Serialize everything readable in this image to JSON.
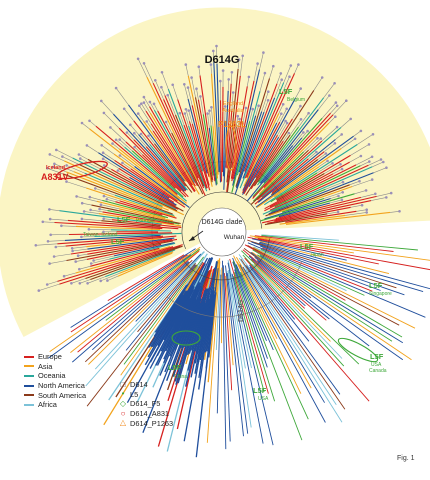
{
  "clade_title": "D614G",
  "center_labels": {
    "clade": "D614G clade",
    "root": "Wuhan",
    "inner": "D614G"
  },
  "annotations": [
    {
      "id": "p1263l",
      "places": "England\nAustralia",
      "mutation": "P1263L",
      "color": "#f08a1c"
    },
    {
      "id": "a831v",
      "places": "Iceland",
      "mutation": "A831V",
      "color": "#d6201f"
    },
    {
      "id": "l5f-belgium",
      "mutation": "L5F",
      "place": "Belgium",
      "color": "#3ea83a"
    },
    {
      "id": "l5f-portugal",
      "mutation": "L5F",
      "place": "Portugal",
      "color": "#3ea83a"
    },
    {
      "id": "l5f-taiwan",
      "mutation": "L5F",
      "place": "Taiwan, Iceland",
      "color": "#3ea83a"
    },
    {
      "id": "l5f-japan",
      "mutation": "L5F",
      "place": "Japan",
      "color": "#3ea83a"
    },
    {
      "id": "l5f-singapore",
      "mutation": "L5F",
      "place": "Singapore",
      "color": "#3ea83a"
    },
    {
      "id": "l5f-usa-canada",
      "mutation": "L5F",
      "place": "USA\nCanada",
      "color": "#3ea83a"
    },
    {
      "id": "l5f-usa",
      "mutation": "L5F",
      "place": "USA",
      "color": "#3ea83a"
    },
    {
      "id": "l5f-china",
      "mutation": "L5F",
      "place": "China",
      "color": "#3ea83a"
    }
  ],
  "legend_regions": [
    {
      "label": "Europe",
      "color": "#d6201f"
    },
    {
      "label": "Asia",
      "color": "#f2a31d"
    },
    {
      "label": "Oceania",
      "color": "#2aa79b"
    },
    {
      "label": "North America",
      "color": "#1f4e9c"
    },
    {
      "label": "South America",
      "color": "#8b3a1a"
    },
    {
      "label": "Africa",
      "color": "#7cc2d8"
    }
  ],
  "legend_markers": [
    {
      "label": "D614",
      "symbol": "□",
      "color": "#555555"
    },
    {
      "label": "L5",
      "symbol": "•",
      "color": "#3ea83a"
    },
    {
      "label": "D614_F5",
      "symbol": "◇",
      "color": "#3ea83a"
    },
    {
      "label": "D614_A831",
      "symbol": "○",
      "color": "#d6201f"
    },
    {
      "label": "D614_P1263",
      "symbol": "△",
      "color": "#f08a1c"
    }
  ],
  "figure_label": "Fig. 1",
  "colors": {
    "clade_background": "#fbf5c4",
    "branch_grey": "#8a8a8a"
  }
}
